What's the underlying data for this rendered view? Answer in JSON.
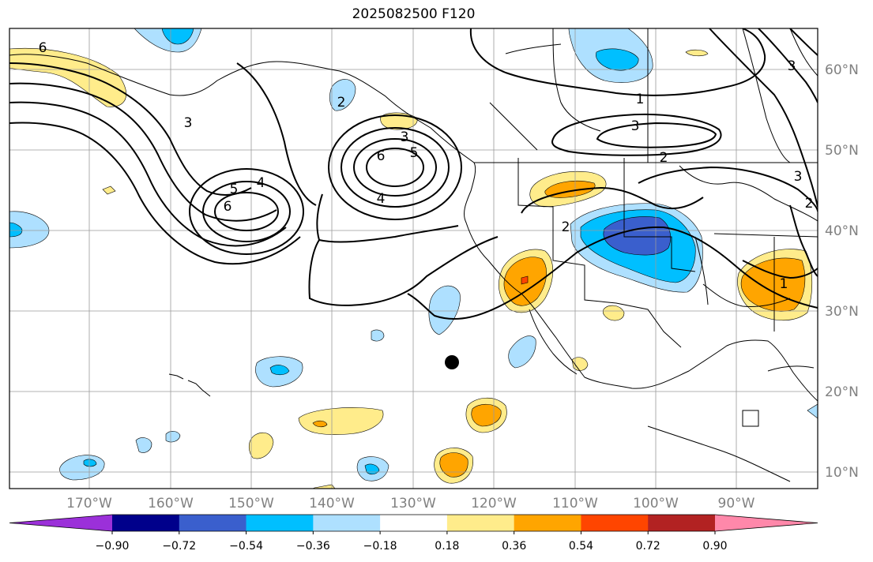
{
  "title": "2025082500 F120",
  "lat_labels": [
    "60°N",
    "50°N",
    "40°N",
    "30°N",
    "20°N",
    "10°N"
  ],
  "lon_labels": [
    "170°W",
    "160°W",
    "150°W",
    "140°W",
    "130°W",
    "120°W",
    "110°W",
    "100°W",
    "90°W"
  ],
  "colorbar": {
    "colors": [
      "#9b30d9",
      "#00008b",
      "#3a5fcd",
      "#00bfff",
      "#aee0ff",
      "#ffffff",
      "#ffec8b",
      "#ffa500",
      "#ff4500",
      "#b22222",
      "#ff88aa"
    ],
    "labels": [
      "−0.90",
      "−0.72",
      "−0.54",
      "−0.36",
      "−0.18",
      "0.18",
      "0.36",
      "0.54",
      "0.72",
      "0.90"
    ]
  },
  "contour_labels": [
    "6",
    "3",
    "5",
    "4",
    "6",
    "2",
    "3",
    "6",
    "5",
    "4",
    "2",
    "1",
    "3",
    "2",
    "1",
    "3",
    "2",
    "3"
  ]
}
